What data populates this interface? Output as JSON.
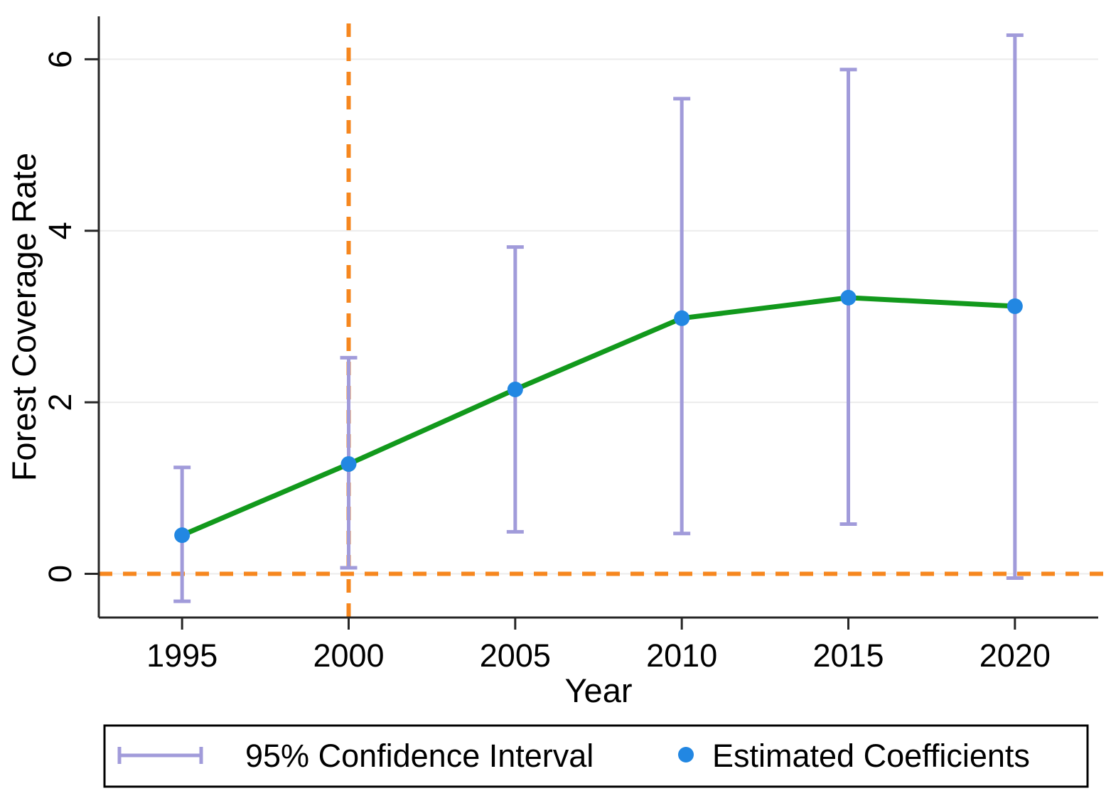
{
  "chart_data": {
    "type": "line",
    "title": "",
    "xlabel": "Year",
    "ylabel": "Forest Coverage Rate",
    "x": [
      1995,
      2000,
      2005,
      2010,
      2015,
      2020
    ],
    "series": [
      {
        "name": "Estimated Coefficients",
        "values": [
          0.45,
          1.28,
          2.15,
          2.98,
          3.22,
          3.12
        ]
      },
      {
        "name": "95% CI lower bound",
        "values": [
          -0.32,
          0.07,
          0.49,
          0.47,
          0.58,
          -0.05
        ]
      },
      {
        "name": "95% CI upper bound",
        "values": [
          1.24,
          2.52,
          3.81,
          5.54,
          5.88,
          6.28
        ]
      }
    ],
    "xticks": [
      1995,
      2000,
      2005,
      2010,
      2015,
      2020
    ],
    "yticks": [
      0,
      2,
      4,
      6
    ],
    "xlim": [
      1992.5,
      2022.5
    ],
    "ylim": [
      -0.51,
      6.5
    ],
    "grid": true,
    "reference_lines": {
      "horizontal_y": 0,
      "vertical_x": 2000
    },
    "legend_position": "bottom",
    "colors": {
      "line": "#12991c",
      "marker": "#2287e2",
      "ci": "#a19bda",
      "reference": "#f6871f",
      "grid": "#ebebeb",
      "axis": "#262626",
      "text": "#000000"
    }
  },
  "legend": {
    "ci_label": "95% Confidence Interval",
    "coef_label": "Estimated Coefficients"
  }
}
